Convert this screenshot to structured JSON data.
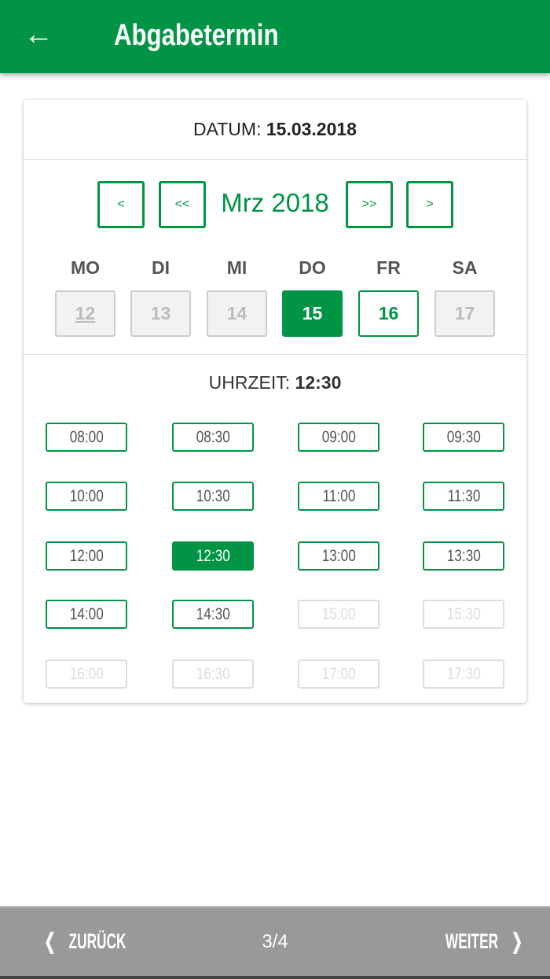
{
  "header": {
    "title": "Abgabetermin",
    "back_icon": "arrow-left-icon"
  },
  "date": {
    "label": "DATUM:",
    "value": "15.03.2018"
  },
  "calendar": {
    "month": "Mrz 2018",
    "prev_week": "<",
    "prev_month": "<<",
    "next_month": ">>",
    "next_week": ">",
    "days": [
      {
        "wd": "MO",
        "num": "12",
        "state": "disabled-today"
      },
      {
        "wd": "DI",
        "num": "13",
        "state": "disabled"
      },
      {
        "wd": "MI",
        "num": "14",
        "state": "disabled"
      },
      {
        "wd": "DO",
        "num": "15",
        "state": "selected"
      },
      {
        "wd": "FR",
        "num": "16",
        "state": "available"
      },
      {
        "wd": "SA",
        "num": "17",
        "state": "disabled"
      }
    ]
  },
  "time": {
    "label": "UHRZEIT:",
    "value": "12:30",
    "slots": [
      {
        "t": "08:00",
        "s": "a"
      },
      {
        "t": "08:30",
        "s": "a"
      },
      {
        "t": "09:00",
        "s": "a"
      },
      {
        "t": "09:30",
        "s": "a"
      },
      {
        "t": "10:00",
        "s": "a"
      },
      {
        "t": "10:30",
        "s": "a"
      },
      {
        "t": "11:00",
        "s": "a"
      },
      {
        "t": "11:30",
        "s": "a"
      },
      {
        "t": "12:00",
        "s": "a"
      },
      {
        "t": "12:30",
        "s": "sel"
      },
      {
        "t": "13:00",
        "s": "a"
      },
      {
        "t": "13:30",
        "s": "a"
      },
      {
        "t": "14:00",
        "s": "a"
      },
      {
        "t": "14:30",
        "s": "a"
      },
      {
        "t": "15:00",
        "s": "dis"
      },
      {
        "t": "15:30",
        "s": "dis"
      },
      {
        "t": "16:00",
        "s": "dis"
      },
      {
        "t": "16:30",
        "s": "dis"
      },
      {
        "t": "17:00",
        "s": "dis"
      },
      {
        "t": "17:30",
        "s": "dis"
      }
    ]
  },
  "footer": {
    "back": "ZURÜCK",
    "page": "3/4",
    "next": "WEITER"
  },
  "colors": {
    "accent": "#009444",
    "footer": "#999999"
  }
}
